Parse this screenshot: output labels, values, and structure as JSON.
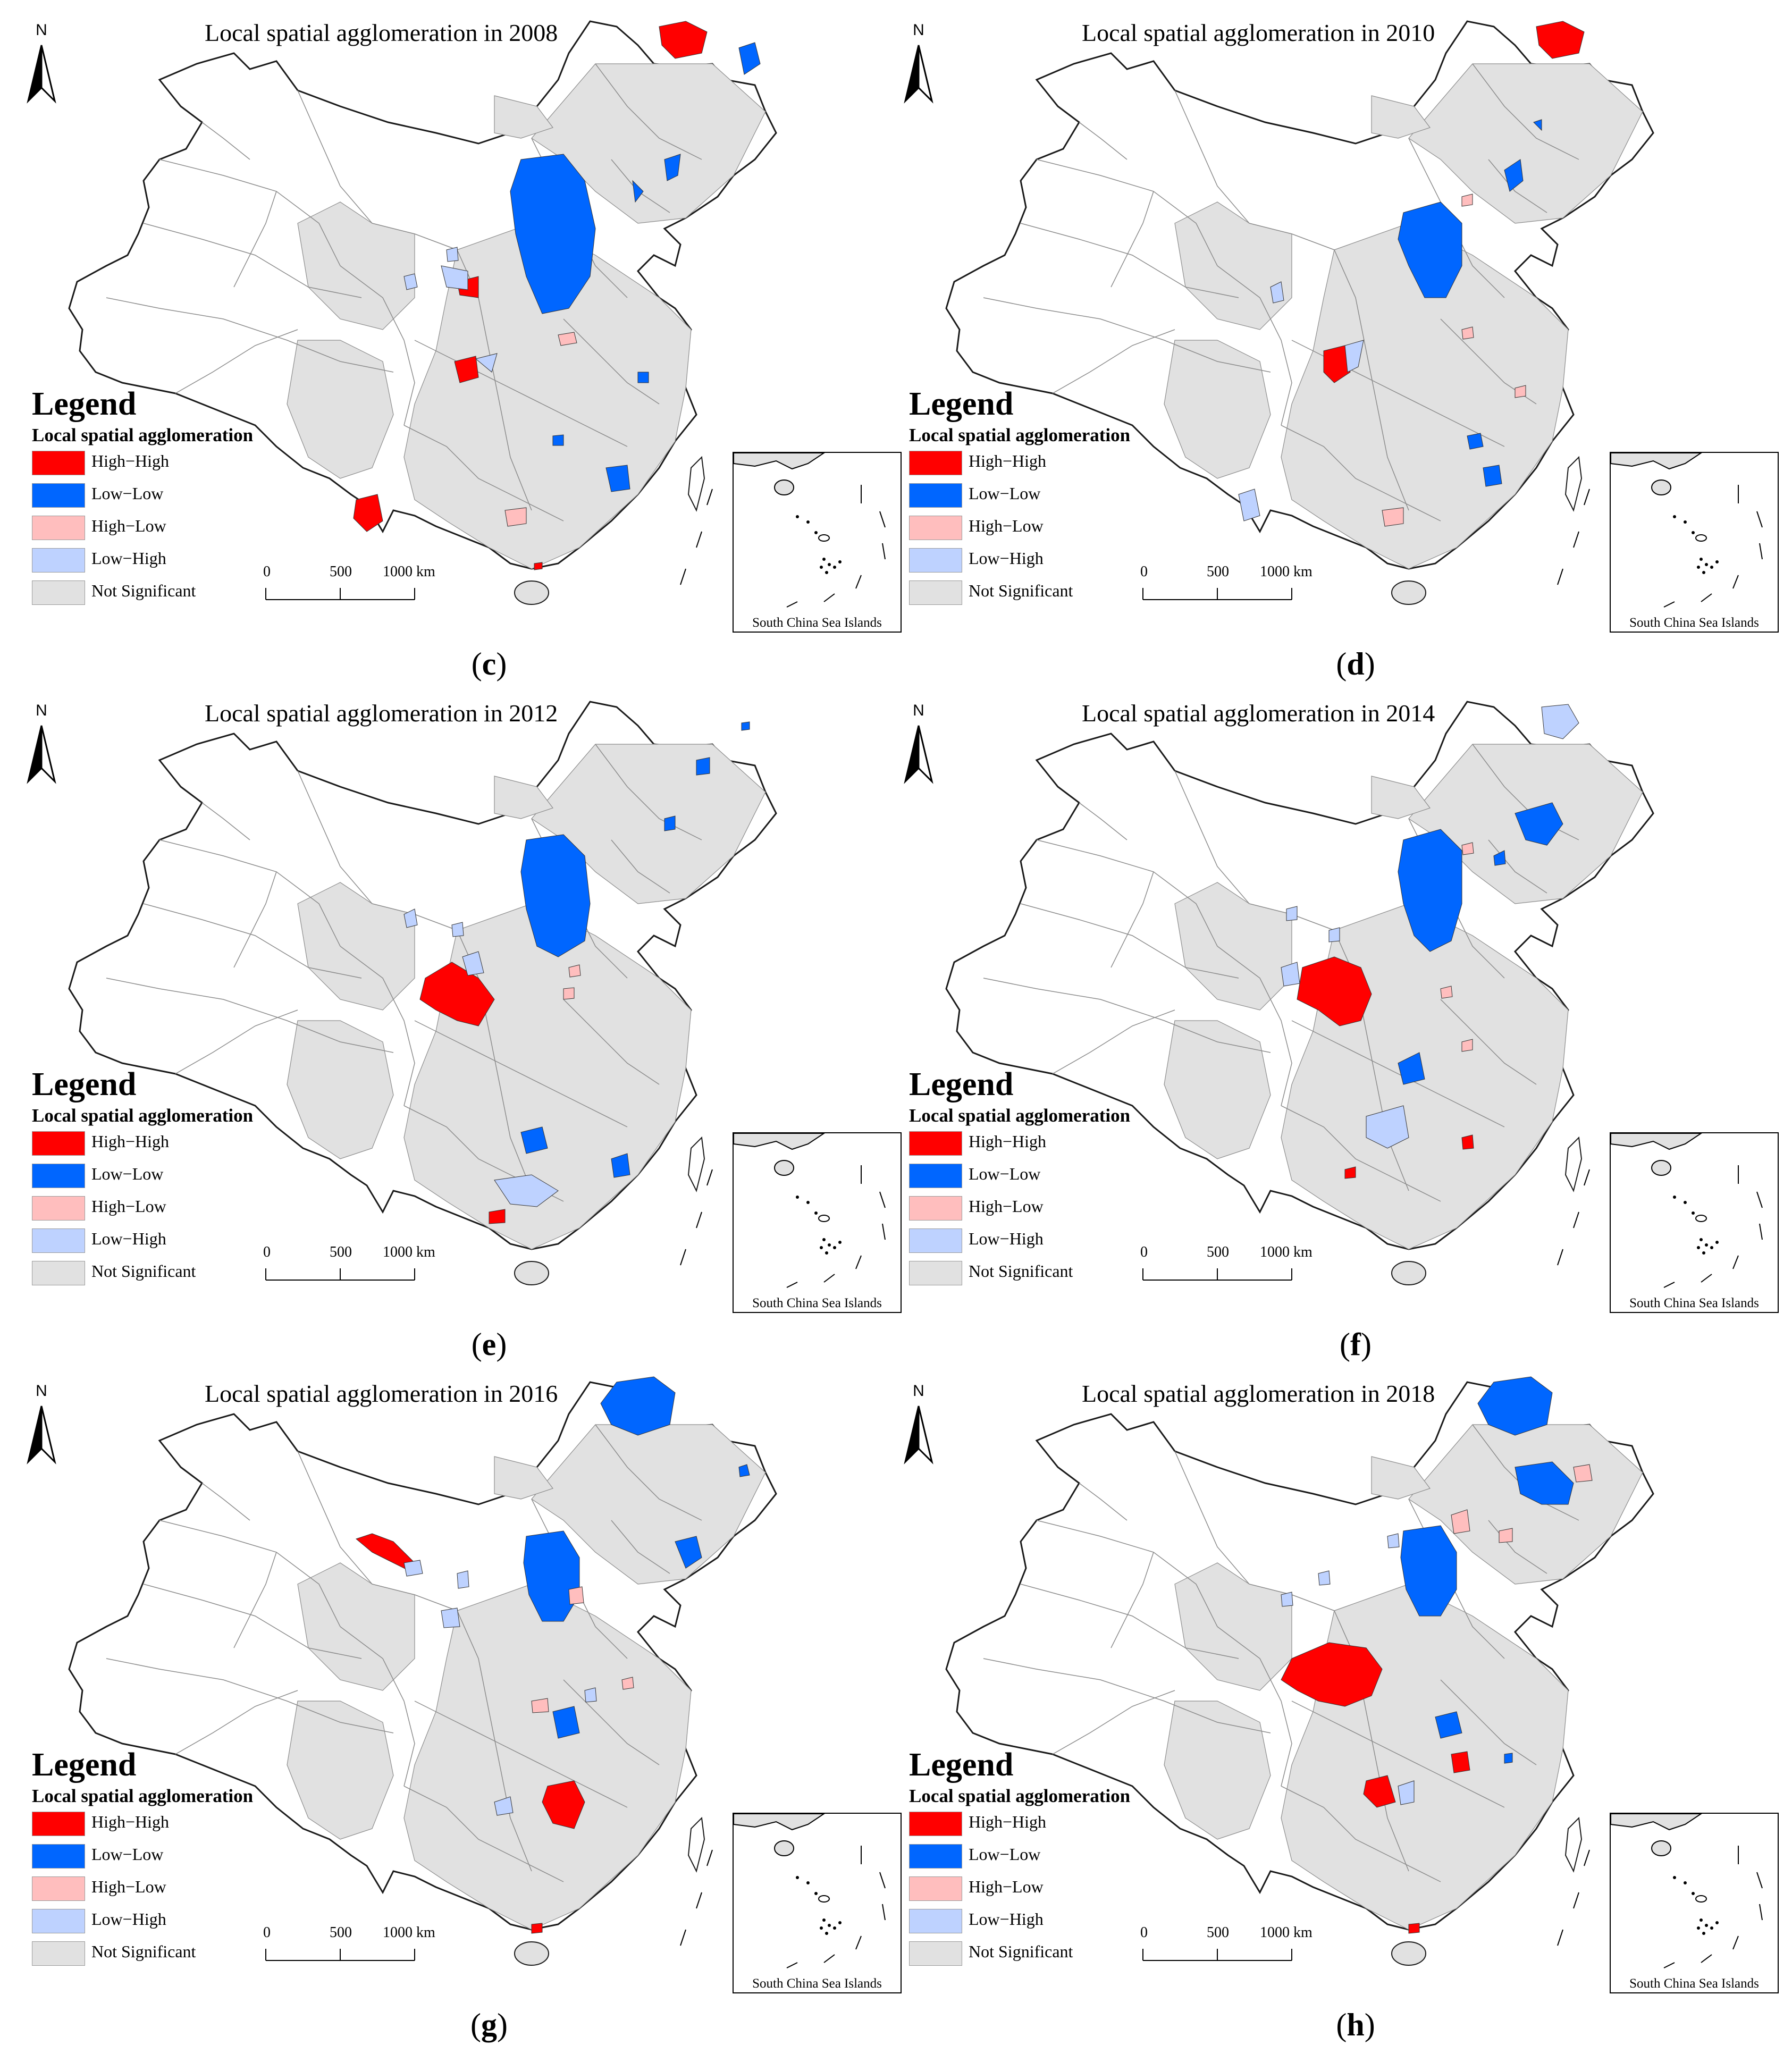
{
  "legend": {
    "title": "Legend",
    "subtitle": "Local spatial agglomeration",
    "items": [
      {
        "label": "High−High",
        "color": "#ff0000"
      },
      {
        "label": "Low−Low",
        "color": "#0066ff"
      },
      {
        "label": "High−Low",
        "color": "#ffbebe"
      },
      {
        "label": "Low−High",
        "color": "#bed2ff"
      },
      {
        "label": "Not Significant",
        "color": "#e1e1e1"
      }
    ]
  },
  "north_label": "N",
  "scale": {
    "labels": [
      "0",
      "500",
      "1000 km"
    ]
  },
  "inset_label": "South China Sea Islands",
  "panels": [
    {
      "title": "Local spatial agglomeration in 2008",
      "caption_letter": "c",
      "caption_open": "(",
      "caption_close": ")"
    },
    {
      "title": "Local spatial agglomeration in 2010",
      "caption_letter": "d",
      "caption_open": "(",
      "caption_close": ")"
    },
    {
      "title": "Local spatial agglomeration in 2012",
      "caption_letter": "e",
      "caption_open": "(",
      "caption_close": ")"
    },
    {
      "title": "Local spatial agglomeration in 2014",
      "caption_letter": "f",
      "caption_open": "(",
      "caption_close": ")"
    },
    {
      "title": "Local spatial agglomeration in 2016",
      "caption_letter": "g",
      "caption_open": "(",
      "caption_close": ")"
    },
    {
      "title": "Local spatial agglomeration in 2018",
      "caption_letter": "h",
      "caption_open": "(",
      "caption_close": ")"
    }
  ],
  "colors": {
    "outline": "#1a1a1a",
    "boundary": "#8c8c8c",
    "background": "#ffffff"
  }
}
